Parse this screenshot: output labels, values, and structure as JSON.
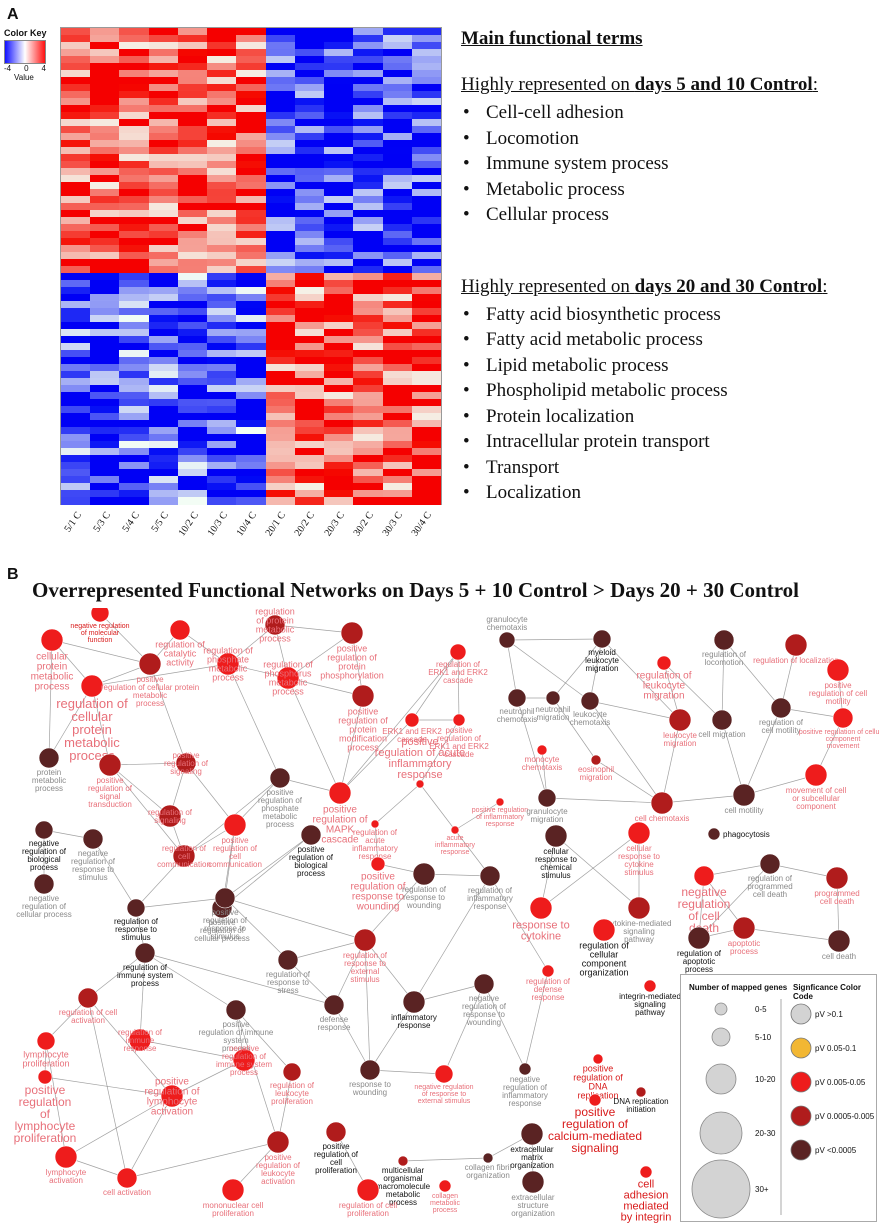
{
  "panel_a": {
    "label": "A",
    "color_key": {
      "title": "Color Key",
      "ticks": [
        "-4",
        "0",
        "4"
      ],
      "value_label": "Value",
      "low_color": "#1010ff",
      "high_color": "#ff1010"
    },
    "columns": [
      "5/1 C",
      "5/3 C",
      "5/4 C",
      "5/5 C",
      "10/2 C",
      "10/3 C",
      "10/4 C",
      "20/1 C",
      "20/2 C",
      "20/3 C",
      "30/2 C",
      "30/3 C",
      "30/4 C"
    ],
    "terms_title": "Main functional terms",
    "group1": {
      "prefix": "Highly represented on ",
      "bold": "days 5 and 10 Control",
      "suffix": ":",
      "items": [
        "Cell-cell adhesion",
        "Locomotion",
        "Immune system process",
        "Metabolic process",
        "Cellular process"
      ]
    },
    "group2": {
      "prefix": "Highly represented on ",
      "bold": "days 20 and 30 Control",
      "suffix": ":",
      "items": [
        "Fatty acid biosynthetic process",
        "Fatty acid metabolic process",
        "Lipid metabolic process",
        "Phospholipid metabolic process",
        "Protein localization",
        "Intracellular protein transport",
        "Transport",
        "Localization"
      ]
    }
  },
  "panel_b": {
    "label": "B",
    "title": "Overrepresented Functional Networks on Days 5 + 10 Control > Days 20 + 30 Control",
    "colors": {
      "pv_gt_0_1": "#d3d3d3",
      "pv_0_05_0_1": "#f2b733",
      "pv_0_005_0_05": "#ee1c1c",
      "pv_0_0005_0_005": "#b01c1c",
      "pv_lt_0_0005": "#5a2323",
      "label_red": "#e8707a",
      "label_dark": "#111111",
      "label_grey": "#8a8a8a",
      "label_strong_red": "#d81a1a",
      "edge": "#7a7a7a"
    },
    "nodes": [
      {
        "id": "n1",
        "text": "cellular\nprotein\nmetabolic\nprocess",
        "c": "pv_0_005_0_05",
        "lc": "label_red",
        "fs": 10
      },
      {
        "id": "n2",
        "text": "negative regulation\nof molecular\nfunction",
        "c": "pv_0_005_0_05",
        "lc": "label_strong_red",
        "fs": 7
      },
      {
        "id": "n3",
        "text": "regulation of\ncatalytic\nactivity",
        "c": "pv_0_005_0_05",
        "lc": "label_red",
        "fs": 9
      },
      {
        "id": "n4",
        "text": "regulation\nof protein\nmetabolic\nprocess",
        "c": "pv_0_0005_0_005",
        "lc": "label_red",
        "fs": 9
      },
      {
        "id": "n5",
        "text": "positive\nregulation of\nprotein\nphosphorylation",
        "c": "pv_0_0005_0_005",
        "lc": "label_red",
        "fs": 9
      },
      {
        "id": "n6",
        "text": "regulation of\ncellular\nprotein\nmetabolic\nprocess",
        "c": "pv_0_005_0_05",
        "lc": "label_red",
        "fs": 13
      },
      {
        "id": "n7",
        "text": "positive\nregulation of cellular protein\nmetabolic\nprocess",
        "c": "pv_0_0005_0_005",
        "lc": "label_red",
        "fs": 8
      },
      {
        "id": "n8",
        "text": "regulation of\nphosphate\nmetabolic\nprocess",
        "c": "pv_0_005_0_05",
        "lc": "label_red",
        "fs": 9
      },
      {
        "id": "n9",
        "text": "regulation of\nphosphorus\nmetabolic\nprocess",
        "c": "pv_0_005_0_05",
        "lc": "label_red",
        "fs": 9
      },
      {
        "id": "n10",
        "text": "positive\nregulation of\nprotein\nmodification\nprocess",
        "c": "pv_0_0005_0_005",
        "lc": "label_red",
        "fs": 9
      },
      {
        "id": "n11",
        "text": "protein\nmetabolic\nprocess",
        "c": "pv_lt_0_0005",
        "lc": "label_grey",
        "fs": 8
      },
      {
        "id": "n12",
        "text": "positive\nregulation of\nsignal\ntransduction",
        "c": "pv_0_0005_0_005",
        "lc": "label_red",
        "fs": 8
      },
      {
        "id": "n13",
        "text": "positive\nregulation of\nsignaling",
        "c": "pv_0_0005_0_005",
        "lc": "label_red",
        "fs": 8
      },
      {
        "id": "n14",
        "text": "positive\nregulation of\nphosphate\nmetabolic\nprocess",
        "c": "pv_lt_0_0005",
        "lc": "label_grey",
        "fs": 8
      },
      {
        "id": "n15",
        "text": "positive\nregulation of\nMAPK\ncascade",
        "c": "pv_0_005_0_05",
        "lc": "label_red",
        "fs": 10
      },
      {
        "id": "n16",
        "text": "regulation of\nERK1 and ERK2\ncascade",
        "c": "pv_0_005_0_05",
        "lc": "label_red",
        "fs": 8
      },
      {
        "id": "n17",
        "text": "ERK1 and ERK2\ncascade",
        "c": "pv_0_005_0_05",
        "lc": "label_red",
        "fs": 8
      },
      {
        "id": "n18",
        "text": "positive\nregulation of\nERK1 and ERK2\ncascade",
        "c": "pv_0_005_0_05",
        "lc": "label_red",
        "fs": 8
      },
      {
        "id": "n19",
        "text": "regulation of\nsignaling",
        "c": "pv_0_0005_0_005",
        "lc": "label_red",
        "fs": 8
      },
      {
        "id": "n20",
        "text": "positive\nregulation of\ncell\ncommunication",
        "c": "pv_0_005_0_05",
        "lc": "label_red",
        "fs": 8
      },
      {
        "id": "n21",
        "text": "regulation of\ncell\ncommunication",
        "c": "pv_0_0005_0_005",
        "lc": "label_red",
        "fs": 8
      },
      {
        "id": "n22",
        "text": "positive\nregulation of acute\ninflammatory\nresponse",
        "c": "pv_0_005_0_05",
        "lc": "label_red",
        "fs": 11
      },
      {
        "id": "n23",
        "text": "positive regulation\nof inflammatory\nresponse",
        "c": "pv_0_005_0_05",
        "lc": "label_red",
        "fs": 7
      },
      {
        "id": "n24",
        "text": "regulation of\nacute\ninflammatory\nresponse",
        "c": "pv_0_005_0_05",
        "lc": "label_red",
        "fs": 8
      },
      {
        "id": "n25",
        "text": "acute\ninflammatory\nresponse",
        "c": "pv_0_005_0_05",
        "lc": "label_red",
        "fs": 7
      },
      {
        "id": "n26",
        "text": "granulocyte\nchemotaxis",
        "c": "pv_lt_0_0005",
        "lc": "label_grey",
        "fs": 8
      },
      {
        "id": "n27",
        "text": "myeloid\nleukocyte\nmigration",
        "c": "pv_lt_0_0005",
        "lc": "label_dark",
        "fs": 8
      },
      {
        "id": "n28",
        "text": "regulation of\nleukocyte\nmigration",
        "c": "pv_0_005_0_05",
        "lc": "label_red",
        "fs": 10
      },
      {
        "id": "n29",
        "text": "neutrophil\nchemotaxis",
        "c": "pv_lt_0_0005",
        "lc": "label_grey",
        "fs": 8
      },
      {
        "id": "n30",
        "text": "neutrophil\nmigration",
        "c": "pv_lt_0_0005",
        "lc": "label_grey",
        "fs": 8
      },
      {
        "id": "n31",
        "text": "leukocyte\nchemotaxis",
        "c": "pv_lt_0_0005",
        "lc": "label_grey",
        "fs": 8
      },
      {
        "id": "n32",
        "text": "monocyte\nchemotaxis",
        "c": "pv_0_005_0_05",
        "lc": "label_red",
        "fs": 8
      },
      {
        "id": "n33",
        "text": "eosinophil\nmigration",
        "c": "pv_0_0005_0_005",
        "lc": "label_red",
        "fs": 8
      },
      {
        "id": "n34",
        "text": "leukocyte\nmigration",
        "c": "pv_0_0005_0_005",
        "lc": "label_red",
        "fs": 8
      },
      {
        "id": "n35",
        "text": "granulocyte\nmigration",
        "c": "pv_lt_0_0005",
        "lc": "label_grey",
        "fs": 8
      },
      {
        "id": "n36",
        "text": "cell chemotaxis",
        "c": "pv_0_0005_0_005",
        "lc": "label_red",
        "fs": 8
      },
      {
        "id": "n37",
        "text": "regulation of\nlocomotion",
        "c": "pv_lt_0_0005",
        "lc": "label_grey",
        "fs": 8
      },
      {
        "id": "n38",
        "text": "regulation of localization",
        "c": "pv_0_0005_0_005",
        "lc": "label_red",
        "fs": 8
      },
      {
        "id": "n39",
        "text": "positive\nregulation of cell\nmotility",
        "c": "pv_0_005_0_05",
        "lc": "label_red",
        "fs": 8
      },
      {
        "id": "n40",
        "text": "cell migration",
        "c": "pv_lt_0_0005",
        "lc": "label_grey",
        "fs": 8
      },
      {
        "id": "n41",
        "text": "regulation of\ncell motility",
        "c": "pv_lt_0_0005",
        "lc": "label_grey",
        "fs": 8
      },
      {
        "id": "n42",
        "text": "positive regulation of cellular\ncomponent\nmovement",
        "c": "pv_0_005_0_05",
        "lc": "label_red",
        "fs": 7
      },
      {
        "id": "n43",
        "text": "cell motility",
        "c": "pv_lt_0_0005",
        "lc": "label_grey",
        "fs": 8
      },
      {
        "id": "n44",
        "text": "movement of cell\nor subcellular\ncomponent",
        "c": "pv_0_005_0_05",
        "lc": "label_red",
        "fs": 8
      },
      {
        "id": "n45",
        "text": "negative\nregulation of\nbiological\nprocess",
        "c": "pv_lt_0_0005",
        "lc": "label_dark",
        "fs": 8
      },
      {
        "id": "n46",
        "text": "negative\nregulation of\nresponse to\nstimulus",
        "c": "pv_lt_0_0005",
        "lc": "label_grey",
        "fs": 8
      },
      {
        "id": "n47",
        "text": "positive\nregulation of\nbiological\nprocess",
        "c": "pv_lt_0_0005",
        "lc": "label_dark",
        "fs": 8
      },
      {
        "id": "n48",
        "text": "negative\nregulation of\ncellular process",
        "c": "pv_lt_0_0005",
        "lc": "label_grey",
        "fs": 8
      },
      {
        "id": "n49",
        "text": "regulation of\nresponse to\nstimulus",
        "c": "pv_lt_0_0005",
        "lc": "label_dark",
        "fs": 8
      },
      {
        "id": "n50",
        "text": "positive\nregulation of\ncellular process",
        "c": "pv_lt_0_0005",
        "lc": "label_grey",
        "fs": 8
      },
      {
        "id": "n51",
        "text": "positive\nregulation of\nresponse to\nstimulus",
        "c": "pv_lt_0_0005",
        "lc": "label_grey",
        "fs": 8
      },
      {
        "id": "n52",
        "text": "positive\nregulation of\nresponse to\nwounding",
        "c": "pv_0_005_0_05",
        "lc": "label_red",
        "fs": 10
      },
      {
        "id": "n53",
        "text": "cellular\nresponse to\nchemical\nstimulus",
        "c": "pv_lt_0_0005",
        "lc": "label_dark",
        "fs": 8
      },
      {
        "id": "n54",
        "text": "cellular\nresponse to\ncytokine\nstimulus",
        "c": "pv_0_005_0_05",
        "lc": "label_red",
        "fs": 8
      },
      {
        "id": "n55",
        "text": "phagocytosis",
        "c": "pv_lt_0_0005",
        "lc": "label_dark",
        "fs": 8
      },
      {
        "id": "n56",
        "text": "regulation of\nresponse to\nwounding",
        "c": "pv_lt_0_0005",
        "lc": "label_grey",
        "fs": 8
      },
      {
        "id": "n57",
        "text": "regulation of\ninflammatory\nresponse",
        "c": "pv_lt_0_0005",
        "lc": "label_grey",
        "fs": 8
      },
      {
        "id": "n58",
        "text": "response to\ncytokine",
        "c": "pv_0_005_0_05",
        "lc": "label_red",
        "fs": 11
      },
      {
        "id": "n59",
        "text": "cytokine-mediated\nsignaling\npathway",
        "c": "pv_0_0005_0_005",
        "lc": "label_grey",
        "fs": 8
      },
      {
        "id": "n60",
        "text": "regulation of\nprogrammed\ncell death",
        "c": "pv_lt_0_0005",
        "lc": "label_grey",
        "fs": 8
      },
      {
        "id": "n61",
        "text": "negative\nregulation\nof cell\ndeath",
        "c": "pv_0_005_0_05",
        "lc": "label_red",
        "fs": 12
      },
      {
        "id": "n62",
        "text": "programmed\ncell death",
        "c": "pv_0_0005_0_005",
        "lc": "label_red",
        "fs": 8
      },
      {
        "id": "n63",
        "text": "apoptotic\nprocess",
        "c": "pv_0_0005_0_005",
        "lc": "label_red",
        "fs": 8
      },
      {
        "id": "n64",
        "text": "regulation of\napoptotic\nprocess",
        "c": "pv_lt_0_0005",
        "lc": "label_dark",
        "fs": 8
      },
      {
        "id": "n65",
        "text": "cell death",
        "c": "pv_lt_0_0005",
        "lc": "label_grey",
        "fs": 8
      },
      {
        "id": "n66",
        "text": "regulation of\nimmune system\nprocess",
        "c": "pv_lt_0_0005",
        "lc": "label_dark",
        "fs": 8
      },
      {
        "id": "n67",
        "text": "regulation of\nresponse to\nstress",
        "c": "pv_lt_0_0005",
        "lc": "label_grey",
        "fs": 8
      },
      {
        "id": "n68",
        "text": "regulation of\nresponse to\nexternal\nstimulus",
        "c": "pv_0_0005_0_005",
        "lc": "label_red",
        "fs": 8
      },
      {
        "id": "n69",
        "text": "regulation of\ncellular\ncomponent\norganization",
        "c": "pv_0_005_0_05",
        "lc": "label_dark",
        "fs": 9
      },
      {
        "id": "n70",
        "text": "regulation of\ndefense\nresponse",
        "c": "pv_0_005_0_05",
        "lc": "label_red",
        "fs": 8
      },
      {
        "id": "n71",
        "text": "negative\nregulation of\nresponse to\nwounding",
        "c": "pv_lt_0_0005",
        "lc": "label_grey",
        "fs": 8
      },
      {
        "id": "n72",
        "text": "regulation of cell\nactivation",
        "c": "pv_0_0005_0_005",
        "lc": "label_red",
        "fs": 8
      },
      {
        "id": "n73",
        "text": "defense\nresponse",
        "c": "pv_lt_0_0005",
        "lc": "label_grey",
        "fs": 8
      },
      {
        "id": "n74",
        "text": "inflammatory\nresponse",
        "c": "pv_lt_0_0005",
        "lc": "label_dark",
        "fs": 8
      },
      {
        "id": "n75",
        "text": "integrin-mediated\nsignaling\npathway",
        "c": "pv_0_005_0_05",
        "lc": "label_dark",
        "fs": 8
      },
      {
        "id": "n76",
        "text": "lymphocyte\nproliferation",
        "c": "pv_0_005_0_05",
        "lc": "label_red",
        "fs": 9
      },
      {
        "id": "n77",
        "text": "regulation of\nimmune\nresponse",
        "c": "pv_0_005_0_05",
        "lc": "label_red",
        "fs": 8
      },
      {
        "id": "n78",
        "text": "positive\nregulation of immune\nsystem\nprocess",
        "c": "pv_lt_0_0005",
        "lc": "label_grey",
        "fs": 8
      },
      {
        "id": "n79",
        "text": "negative\nregulation of\ninflammatory\nresponse",
        "c": "pv_lt_0_0005",
        "lc": "label_grey",
        "fs": 8
      },
      {
        "id": "n80",
        "text": "positive\nregulation of\nDNA\nreplication",
        "c": "pv_0_005_0_05",
        "lc": "label_strong_red",
        "fs": 9
      },
      {
        "id": "n81",
        "text": "DNA replication\ninitiation",
        "c": "pv_0_0005_0_005",
        "lc": "label_dark",
        "fs": 8
      },
      {
        "id": "n82",
        "text": "positive\nregulation\nof\nlymphocyte\nproliferation",
        "c": "pv_0_005_0_05",
        "lc": "label_red",
        "fs": 12
      },
      {
        "id": "n83",
        "text": "negative\nregulation of\nimmune system\nprocess",
        "c": "pv_0_005_0_05",
        "lc": "label_red",
        "fs": 8
      },
      {
        "id": "n84",
        "text": "regulation of\nleukocyte\nproliferation",
        "c": "pv_0_0005_0_005",
        "lc": "label_red",
        "fs": 8
      },
      {
        "id": "n85",
        "text": "response to\nwounding",
        "c": "pv_lt_0_0005",
        "lc": "label_grey",
        "fs": 8
      },
      {
        "id": "n86",
        "text": "negative regulation\nof response to\nexternal stimulus",
        "c": "pv_0_005_0_05",
        "lc": "label_red",
        "fs": 7
      },
      {
        "id": "n87",
        "text": "positive\nregulation of\nlymphocyte\nactivation",
        "c": "pv_0_005_0_05",
        "lc": "label_red",
        "fs": 10
      },
      {
        "id": "n88",
        "text": "positive\nregulation of\ncalcium-mediated\nsignaling",
        "c": "pv_0_005_0_05",
        "lc": "label_strong_red",
        "fs": 12
      },
      {
        "id": "n89",
        "text": "extracellular\nmatrix\norganization",
        "c": "pv_lt_0_0005",
        "lc": "label_dark",
        "fs": 8
      },
      {
        "id": "n90",
        "text": "collagen fibril\norganization",
        "c": "pv_lt_0_0005",
        "lc": "label_grey",
        "fs": 8
      },
      {
        "id": "n91",
        "text": "multicellular\norganismal\nmacromolecule\nmetabolic\nprocess",
        "c": "pv_0_0005_0_005",
        "lc": "label_dark",
        "fs": 8
      },
      {
        "id": "n92",
        "text": "positive\nregulation of\ncell\nproliferation",
        "c": "pv_0_0005_0_005",
        "lc": "label_dark",
        "fs": 8
      },
      {
        "id": "n93",
        "text": "positive\nregulation of\nleukocyte\nactivation",
        "c": "pv_0_0005_0_005",
        "lc": "label_red",
        "fs": 8
      },
      {
        "id": "n94",
        "text": "lymphocyte\nactivation",
        "c": "pv_0_005_0_05",
        "lc": "label_red",
        "fs": 8
      },
      {
        "id": "n95",
        "text": "cell activation",
        "c": "pv_0_005_0_05",
        "lc": "label_red",
        "fs": 8
      },
      {
        "id": "n96",
        "text": "mononuclear cell\nproliferation",
        "c": "pv_0_005_0_05",
        "lc": "label_red",
        "fs": 8
      },
      {
        "id": "n97",
        "text": "regulation of cell\nproliferation",
        "c": "pv_0_005_0_05",
        "lc": "label_red",
        "fs": 8
      },
      {
        "id": "n98",
        "text": "collagen\nmetabolic\nprocess",
        "c": "pv_0_005_0_05",
        "lc": "label_red",
        "fs": 7
      },
      {
        "id": "n99",
        "text": "extracellular\nstructure\norganization",
        "c": "pv_lt_0_0005",
        "lc": "label_grey",
        "fs": 8
      },
      {
        "id": "n100",
        "text": "cell\nadhesion\nmediated\nby integrin",
        "c": "pv_0_005_0_05",
        "lc": "label_strong_red",
        "fs": 11
      }
    ],
    "legend": {
      "size_title": "Number of mapped genes",
      "color_title": "Signficance Color Code",
      "sizes": [
        "0-5",
        "5-10",
        "10-20",
        "20-30",
        "30+"
      ],
      "color_entries": [
        {
          "label": "pV >0.1",
          "c": "pv_gt_0_1"
        },
        {
          "label": "pV 0.05-0.1",
          "c": "pv_0_05_0_1"
        },
        {
          "label": "pV 0.005-0.05",
          "c": "pv_0_005_0_05"
        },
        {
          "label": "pV 0.0005-0.005",
          "c": "pv_0_0005_0_005"
        },
        {
          "label": "pV <0.0005",
          "c": "pv_lt_0_0005"
        }
      ]
    }
  }
}
